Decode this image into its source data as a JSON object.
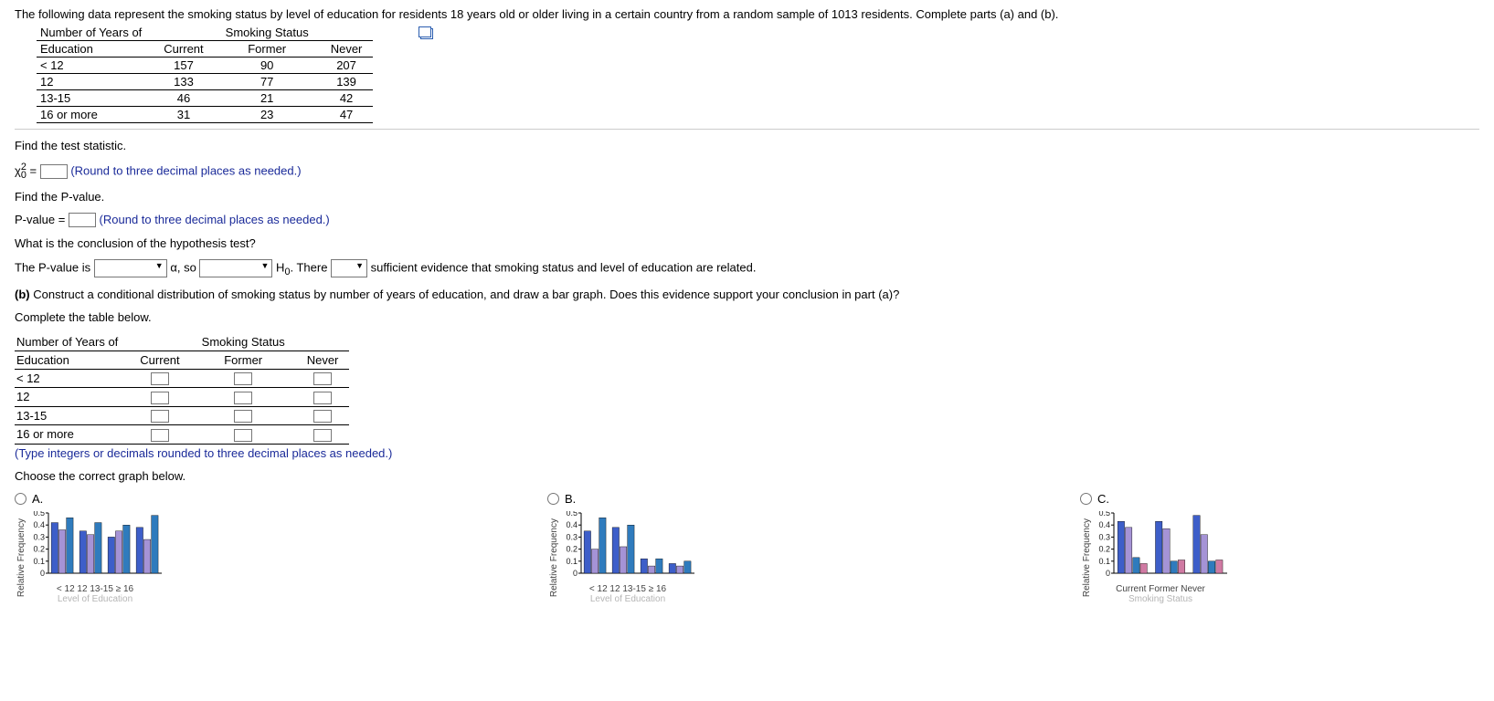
{
  "intro": "The following data represent the smoking status by level of education for residents 18 years old or older living in a certain country from a random sample of 1013 residents. Complete parts (a) and (b).",
  "table1": {
    "col_header_top_left": "Number of Years of",
    "col_header_top_center": "Smoking Status",
    "col_headers": [
      "Education",
      "Current",
      "Former",
      "Never"
    ],
    "rows": [
      [
        "< 12",
        "157",
        "90",
        "207"
      ],
      [
        "12",
        "133",
        "77",
        "139"
      ],
      [
        "13-15",
        "46",
        "21",
        "42"
      ],
      [
        "16 or more",
        "31",
        "23",
        "47"
      ]
    ]
  },
  "q_stat": "Find the test statistic.",
  "chi_sym": "χ",
  "chi_sub": "0",
  "chi_sup": "2",
  "eq": " = ",
  "round3": "(Round to three decimal places as needed.)",
  "q_pval": "Find the P-value.",
  "pval_lhs": "P-value = ",
  "q_concl": "What is the conclusion of the hypothesis test?",
  "concl": {
    "t1": "The P-value is ",
    "t2": " α, so ",
    "t3": " H",
    "t3sub": "0",
    "t3b": ". There ",
    "t4": " sufficient evidence that smoking status and level of education are related."
  },
  "part_b": "(b) Construct a conditional distribution of smoking status by number of years of education, and draw a bar graph. Does this evidence support your conclusion in part (a)?",
  "complete": "Complete the table below.",
  "table2": {
    "col_header_top_left": "Number of Years of",
    "col_header_top_center": "Smoking Status",
    "col_headers": [
      "Education",
      "Current",
      "Former",
      "Never"
    ],
    "rows": [
      "< 12",
      "12",
      "13-15",
      "16 or more"
    ]
  },
  "type_note": "(Type integers or decimals rounded to three decimal places as needed.)",
  "choose": "Choose the correct graph below.",
  "opts": {
    "a": "A.",
    "b": "B.",
    "c": "C."
  },
  "charts": {
    "ylabel": "Relative Frequency",
    "xlabel_edu": "Level of Education",
    "xlabel_smk": "Smoking Status",
    "yticks": [
      "0",
      "0.1",
      "0.2",
      "0.3",
      "0.4",
      "0.5"
    ],
    "yvals": [
      0,
      0.1,
      0.2,
      0.3,
      0.4,
      0.5
    ],
    "ymax": 0.5,
    "colors3": [
      "#3d5ec9",
      "#a593d6",
      "#2f7bbd"
    ],
    "colors4": [
      "#3d5ec9",
      "#a593d6",
      "#2f7bbd",
      "#d07aa3"
    ],
    "edu_ticks": [
      "< 12",
      "12",
      "13-15",
      "≥ 16"
    ],
    "smk_ticks": [
      "Current",
      "Former",
      "Never"
    ],
    "a": [
      [
        0.42,
        0.36,
        0.46
      ],
      [
        0.35,
        0.32,
        0.42
      ],
      [
        0.3,
        0.35,
        0.4
      ],
      [
        0.38,
        0.28,
        0.48
      ]
    ],
    "b": [
      [
        0.35,
        0.2,
        0.46
      ],
      [
        0.38,
        0.22,
        0.4
      ],
      [
        0.12,
        0.06,
        0.12
      ],
      [
        0.08,
        0.06,
        0.1
      ]
    ],
    "c": [
      [
        0.43,
        0.38,
        0.13,
        0.08
      ],
      [
        0.43,
        0.37,
        0.1,
        0.11
      ],
      [
        0.48,
        0.32,
        0.1,
        0.11
      ]
    ]
  }
}
